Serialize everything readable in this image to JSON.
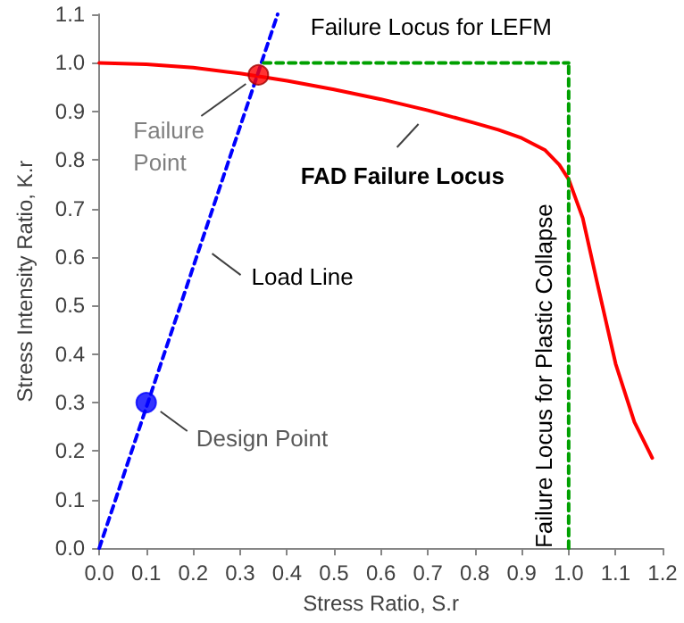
{
  "chart_data": {
    "type": "line",
    "xlabel": "Stress Ratio, S.r",
    "ylabel": "Stress Intensity Ratio, K.r",
    "xlim": [
      0,
      1.2
    ],
    "xticks": [
      {
        "value": 0,
        "label": "0.0"
      },
      0.1,
      0.2,
      0.3,
      0.4,
      0.5,
      0.6,
      0.7,
      0.8,
      0.9,
      {
        "value": 1,
        "label": "1.0"
      },
      1.1,
      1.2
    ],
    "ylim": [
      0,
      1.1
    ],
    "yticks": [
      {
        "value": 0,
        "label": "0.0"
      },
      0.1,
      0.2,
      0.3,
      0.4,
      0.5,
      0.6,
      0.7,
      0.8,
      0.9,
      {
        "value": 1,
        "label": "1.0"
      },
      1.1
    ],
    "grid": false,
    "series": [
      {
        "color": "#ff0000",
        "line_style": "solid",
        "marker": "none",
        "x": [
          0,
          0.1,
          0.2,
          0.3,
          0.4,
          0.5,
          0.6,
          0.7,
          0.8,
          0.85,
          0.9,
          0.95,
          0.98,
          1.0,
          1.03,
          1.06,
          1.1,
          1.14,
          1.178
        ],
        "values": [
          1,
          0.997,
          0.99,
          0.978,
          0.963,
          0.945,
          0.925,
          0.902,
          0.876,
          0.862,
          0.845,
          0.82,
          0.79,
          0.76,
          0.68,
          0.55,
          0.38,
          0.26,
          0.186
        ]
      },
      {
        "color": "#0000ff",
        "line_style": "dashed",
        "marker": "none",
        "x": [
          0,
          0.38
        ],
        "values": [
          0,
          1.1
        ]
      },
      {
        "color": "#00a000",
        "line_style": "dashed",
        "marker": "none",
        "x": [
          0.35,
          1.0
        ],
        "values": [
          1,
          1
        ]
      },
      {
        "color": "#00a000",
        "line_style": "dashed",
        "marker": "none",
        "x": [
          1.0,
          1.0
        ],
        "values": [
          0,
          1
        ]
      },
      {
        "type": "scatter",
        "color": "#ff0000",
        "marker": "circle",
        "x": [
          0.339
        ],
        "values": [
          0.975
        ]
      },
      {
        "type": "scatter",
        "color": "#0000ff",
        "marker": "circle",
        "x": [
          0.1
        ],
        "values": [
          0.3
        ]
      }
    ],
    "annotations": [
      {
        "text": "Failure Locus for LEFM",
        "x": 0.65,
        "y": 1.0
      },
      {
        "text": "Failure Point",
        "x": 0.339,
        "y": 0.975
      },
      {
        "text": "FAD Failure Locus",
        "x": 0.68,
        "y": 0.907
      },
      {
        "text": "Load Line",
        "x": 0.21,
        "y": 0.607
      },
      {
        "text": "Design Point",
        "x": 0.1,
        "y": 0.3
      },
      {
        "text": "Failure Locus for Plastic Collapse",
        "x": 1.0,
        "y": 0.355
      }
    ]
  }
}
